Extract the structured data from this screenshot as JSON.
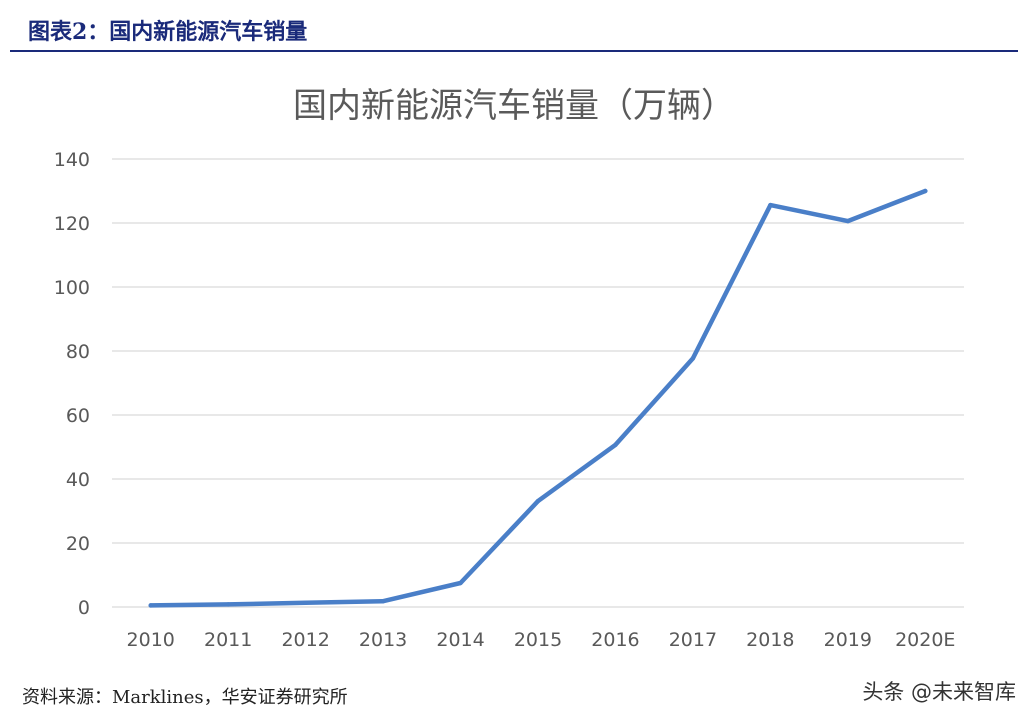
{
  "figure": {
    "title": "图表2：国内新能源汽车销量",
    "source": "资料来源：Marklines，华安证券研究所",
    "watermark": "头条 @未来智库"
  },
  "colors": {
    "header": "#1a2a7a",
    "line": "#4a7fc8",
    "grid": "#d9d9d9",
    "tick_text": "#595959"
  },
  "chart_data": {
    "type": "line",
    "title": "国内新能源汽车销量（万辆）",
    "xlabel": "",
    "ylabel": "",
    "categories": [
      "2010",
      "2011",
      "2012",
      "2013",
      "2014",
      "2015",
      "2016",
      "2017",
      "2018",
      "2019",
      "2020E"
    ],
    "series": [
      {
        "values": [
          0.5,
          0.8,
          1.3,
          1.8,
          7.5,
          33.1,
          50.7,
          77.7,
          125.6,
          120.6,
          130
        ]
      }
    ],
    "ylim": [
      0,
      140
    ],
    "yticks": [
      0,
      20,
      40,
      60,
      80,
      100,
      120,
      140
    ],
    "grid": true,
    "legend": "none"
  }
}
